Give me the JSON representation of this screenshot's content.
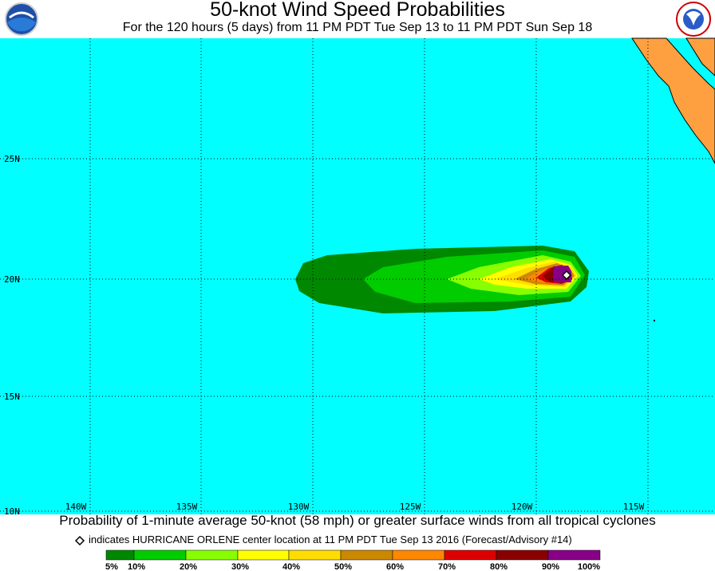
{
  "header": {
    "title": "50-knot Wind Speed Probabilities",
    "subtitle": "For the 120 hours (5 days) from 11 PM PDT Tue Sep 13 to 11 PM PDT Sun Sep 18"
  },
  "map": {
    "lat_labels": [
      "25N",
      "20N",
      "15N",
      "10N"
    ],
    "lon_labels": [
      "140W",
      "135W",
      "130W",
      "125W",
      "120W",
      "115W"
    ]
  },
  "footer": {
    "caption": "Probability of 1-minute average 50-knot (58 mph) or greater surface winds from all tropical cyclones",
    "marker_note": "indicates HURRICANE ORLENE center location at 11 PM PDT Tue Sep 13 2016 (Forecast/Advisory #14)"
  },
  "legend": {
    "colors": [
      "#008800",
      "#00cc00",
      "#88ff00",
      "#ffff00",
      "#ffdd00",
      "#cc8800",
      "#ff8800",
      "#dd0000",
      "#880000",
      "#880088"
    ],
    "labels": [
      "5%",
      "10%",
      "20%",
      "30%",
      "40%",
      "50%",
      "60%",
      "70%",
      "80%",
      "90%",
      "100%"
    ]
  }
}
